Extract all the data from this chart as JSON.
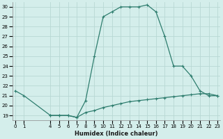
{
  "xlabel": "Humidex (Indice chaleur)",
  "bg_color": "#d4eeeb",
  "grid_color": "#b8d8d4",
  "line_color": "#2e7d6e",
  "upper_x": [
    0,
    1,
    4,
    5,
    6,
    7,
    8,
    9,
    10,
    11,
    12,
    13,
    14,
    15,
    16,
    17,
    18,
    19,
    20,
    21,
    22,
    23
  ],
  "upper_y": [
    21.5,
    21.0,
    19.0,
    19.0,
    19.0,
    18.8,
    20.5,
    25.0,
    29.0,
    29.5,
    30.0,
    30.0,
    30.0,
    30.2,
    29.5,
    27.0,
    24.0,
    24.0,
    23.0,
    21.5,
    21.0,
    21.0
  ],
  "lower_x": [
    4,
    5,
    6,
    7,
    8,
    9,
    10,
    11,
    12,
    13,
    14,
    15,
    16,
    17,
    18,
    19,
    20,
    21,
    22,
    23
  ],
  "lower_y": [
    19.0,
    19.0,
    19.0,
    18.8,
    19.3,
    19.5,
    19.8,
    20.0,
    20.2,
    20.4,
    20.5,
    20.6,
    20.7,
    20.8,
    20.9,
    21.0,
    21.1,
    21.2,
    21.2,
    21.0
  ],
  "ylim": [
    18.5,
    30.5
  ],
  "yticks": [
    19,
    20,
    21,
    22,
    23,
    24,
    25,
    26,
    27,
    28,
    29,
    30
  ],
  "xticks": [
    0,
    1,
    4,
    5,
    6,
    7,
    8,
    9,
    10,
    11,
    12,
    13,
    14,
    15,
    16,
    17,
    18,
    19,
    20,
    21,
    22,
    23
  ],
  "xlim": [
    -0.3,
    23.3
  ],
  "markersize": 2.5,
  "linewidth": 0.9,
  "tick_fontsize": 5.0,
  "xlabel_fontsize": 6.0
}
